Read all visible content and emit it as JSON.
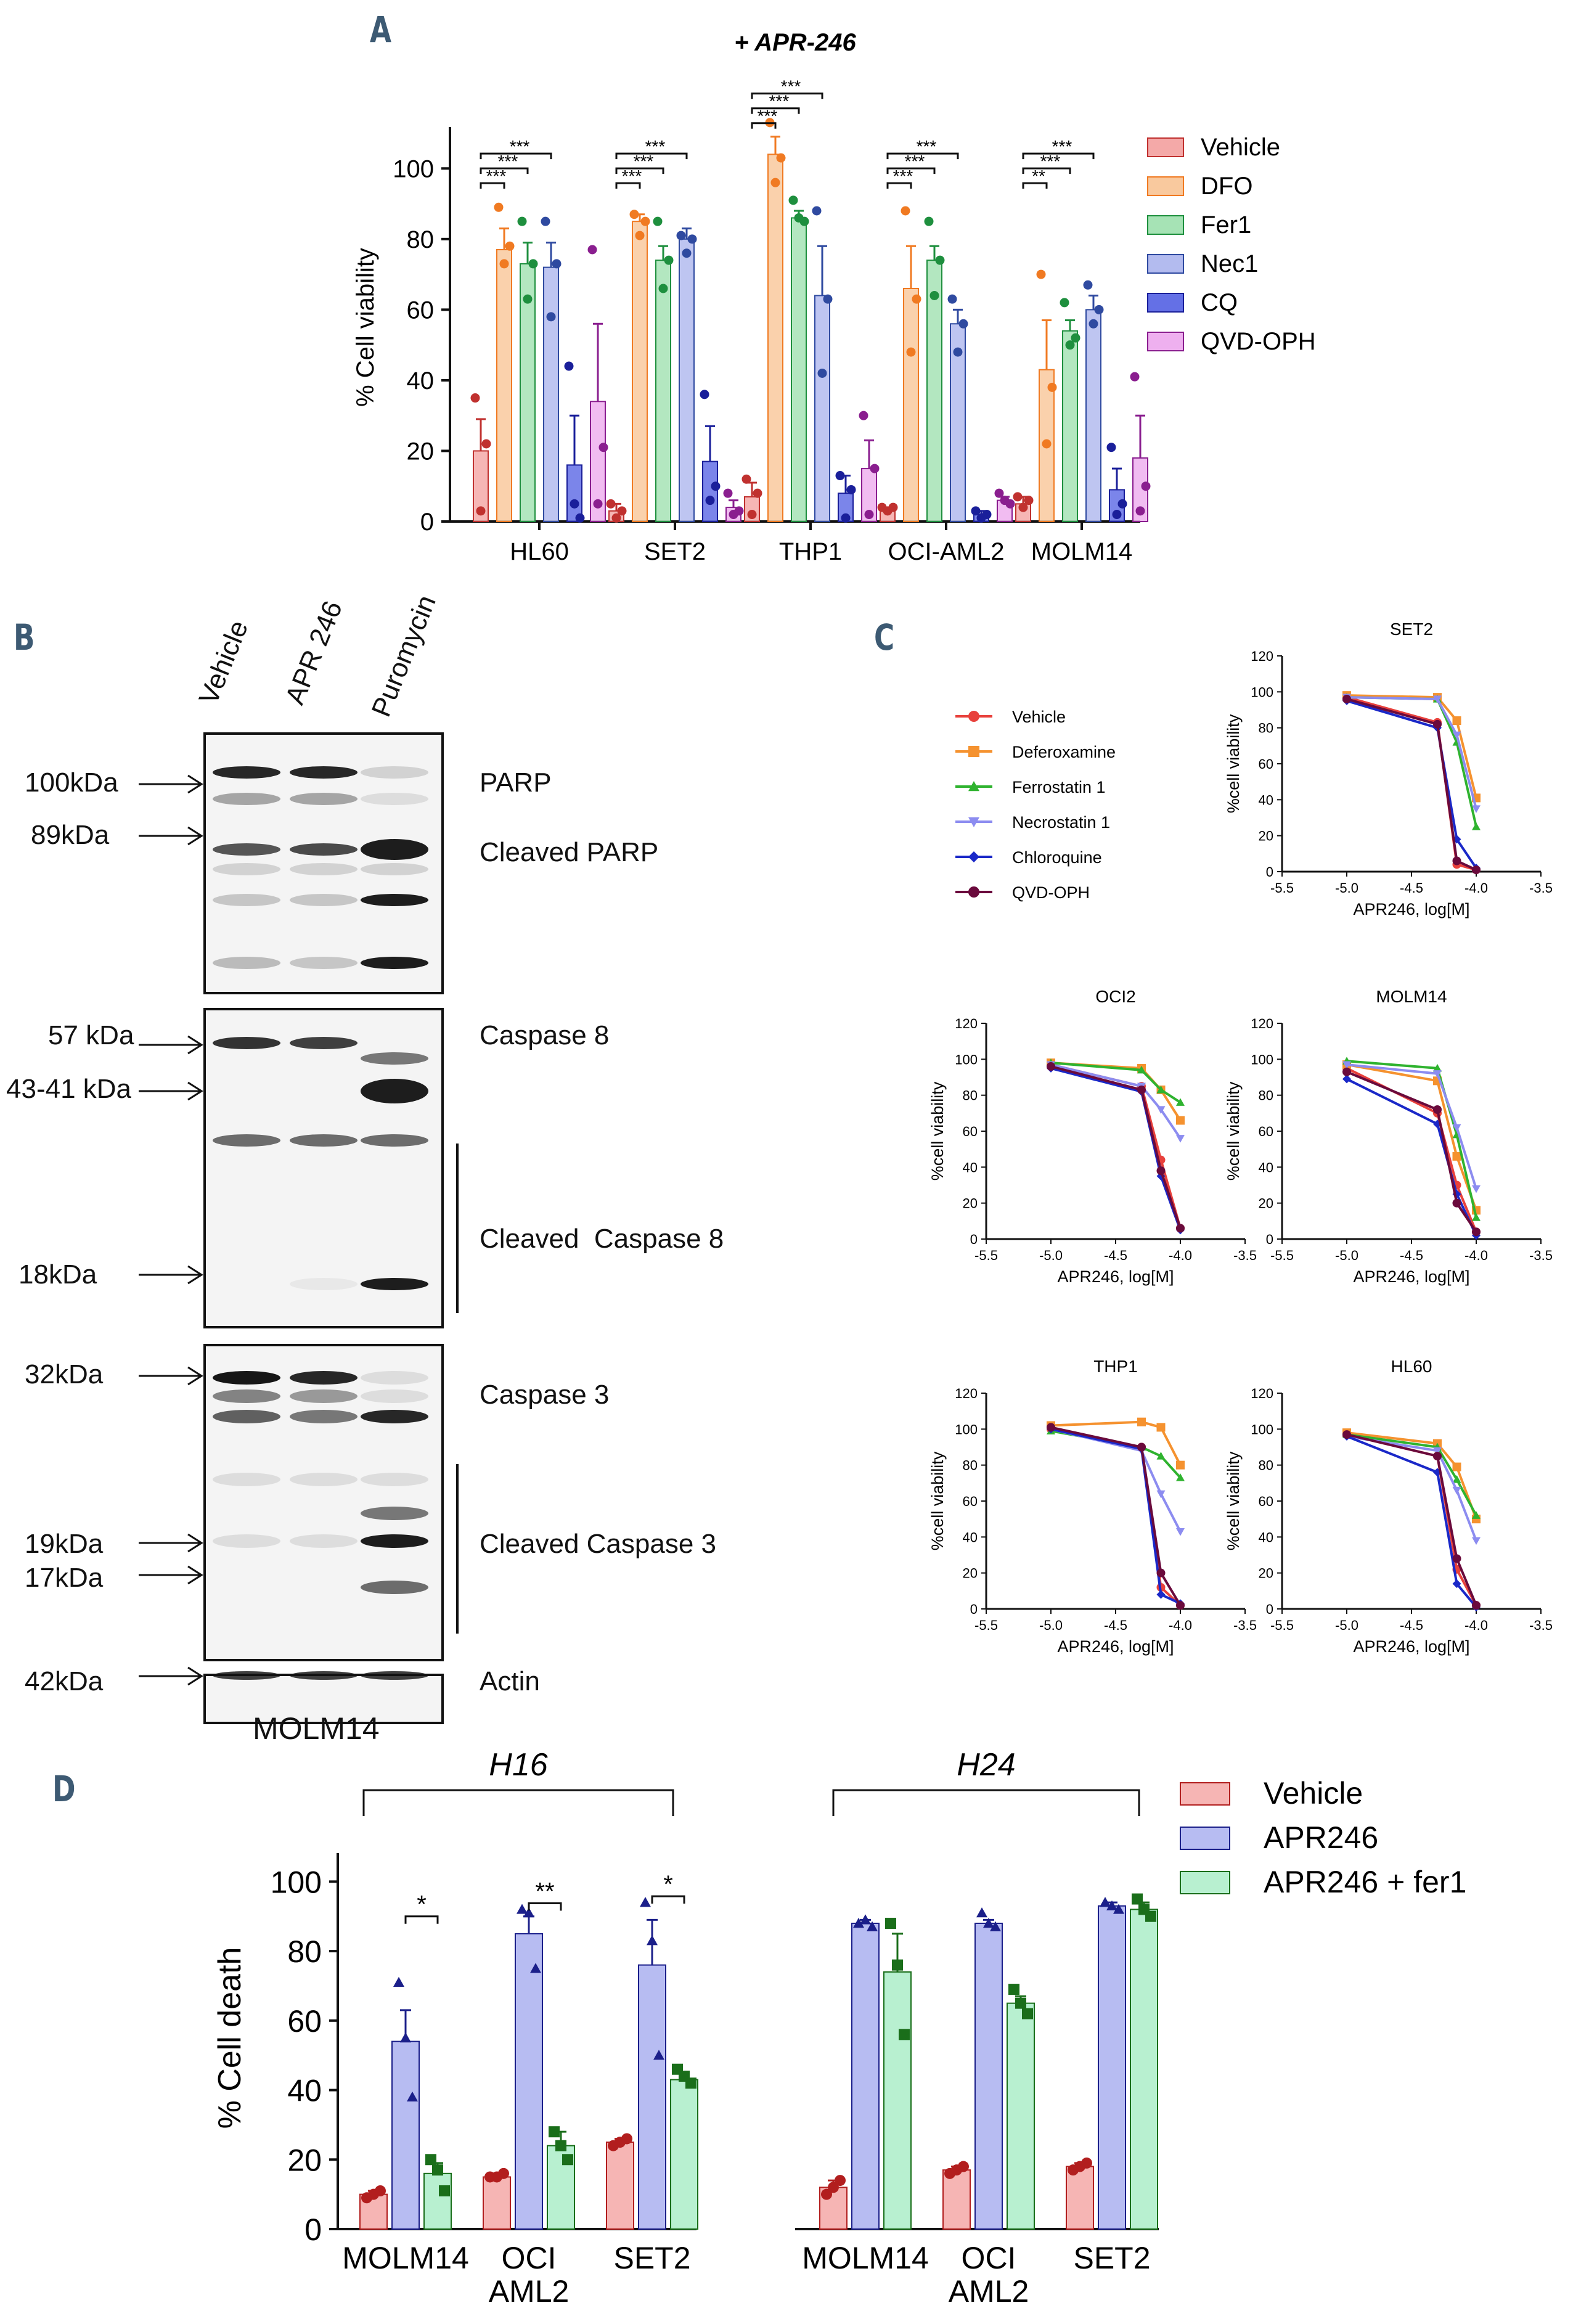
{
  "panel_letters": {
    "A": "A",
    "B": "B",
    "C": "C",
    "D": "D"
  },
  "panelA": {
    "title": "+ APR-246",
    "colors": [
      "#f4a9a8",
      "#f9c99e",
      "#a6e3b5",
      "#b3bbef",
      "#6470e6",
      "#eeb0ef"
    ],
    "dot_colors": [
      "#c0312f",
      "#f07a22",
      "#1e8f3e",
      "#2f4aa0",
      "#1a1f9a",
      "#8a1e8f"
    ]
  },
  "panelB": {
    "lanes": [
      "Vehicle",
      "APR 246",
      "Puromycin"
    ],
    "markers": [
      {
        "kda": "100kDa",
        "label": "PARP"
      },
      {
        "kda": "89kDa",
        "label": "Cleaved PARP"
      },
      {
        "kda": "57 kDa",
        "label": "Caspase 8"
      },
      {
        "kda": "43-41 kDa",
        "label": ""
      },
      {
        "kda": "18kDa",
        "label": "Cleaved  Caspase 8"
      },
      {
        "kda": "32kDa",
        "label": "Caspase 3"
      },
      {
        "kda": "19kDa",
        "label": "Cleaved Caspase 3"
      },
      {
        "kda": "17kDa",
        "label": ""
      },
      {
        "kda": "42kDa",
        "label": "Actin"
      }
    ],
    "cell_line": "MOLM14"
  },
  "panelC": {
    "legend": [
      "Vehicle",
      "Deferoxamine",
      "Ferrostatin 1",
      "Necrostatin 1",
      "Chloroquine",
      "QVD-OPH"
    ],
    "colors": [
      "#e8413c",
      "#f5922f",
      "#2fb32f",
      "#8c8cf0",
      "#1a28c8",
      "#6a0a3c"
    ]
  },
  "panelD": {
    "colors": [
      "#f6b5b4",
      "#b7bcf2",
      "#b8f0d0"
    ],
    "marker_colors": [
      "#b21e1e",
      "#1b1f8a",
      "#1a6e1a"
    ]
  },
  "chart_data": [
    {
      "id": "A",
      "type": "bar",
      "title": "+ APR-246",
      "xlabel": "",
      "ylabel": "%  Cell viability",
      "ylim": [
        0,
        110
      ],
      "yticks": [
        0,
        20,
        40,
        60,
        80,
        100
      ],
      "categories": [
        "HL60",
        "SET2",
        "THP1",
        "OCI-AML2",
        "MOLM14"
      ],
      "series": [
        {
          "name": "Vehicle",
          "values": [
            20,
            3,
            7,
            3,
            5
          ],
          "sem": [
            9,
            2,
            4,
            1,
            2
          ],
          "points": [
            [
              35,
              3,
              22
            ],
            [
              5,
              1,
              3
            ],
            [
              12,
              2,
              8
            ],
            [
              4,
              3,
              4
            ],
            [
              7,
              4,
              6
            ]
          ]
        },
        {
          "name": "DFO",
          "values": [
            77,
            85,
            104,
            66,
            43
          ],
          "sem": [
            6,
            2,
            5,
            12,
            14
          ],
          "points": [
            [
              89,
              73,
              78
            ],
            [
              87,
              81,
              85
            ],
            [
              113,
              96,
              103
            ],
            [
              88,
              48,
              63
            ],
            [
              70,
              22,
              38
            ]
          ]
        },
        {
          "name": "Fer1",
          "values": [
            73,
            74,
            86,
            74,
            54
          ],
          "sem": [
            6,
            4,
            2,
            4,
            3
          ],
          "points": [
            [
              85,
              63,
              73
            ],
            [
              85,
              66,
              74
            ],
            [
              91,
              86,
              85
            ],
            [
              85,
              64,
              74
            ],
            [
              62,
              50,
              52
            ]
          ]
        },
        {
          "name": "Nec1",
          "values": [
            72,
            80,
            64,
            56,
            60
          ],
          "sem": [
            7,
            3,
            14,
            4,
            4
          ],
          "points": [
            [
              85,
              58,
              73
            ],
            [
              81,
              76,
              80
            ],
            [
              88,
              42,
              63
            ],
            [
              63,
              48,
              56
            ],
            [
              67,
              56,
              60
            ]
          ]
        },
        {
          "name": "CQ",
          "values": [
            16,
            17,
            8,
            2,
            9
          ],
          "sem": [
            14,
            10,
            5,
            1,
            6
          ],
          "points": [
            [
              44,
              5,
              1
            ],
            [
              36,
              6,
              10
            ],
            [
              13,
              1,
              9
            ],
            [
              3,
              1,
              2
            ],
            [
              21,
              2,
              5
            ]
          ]
        },
        {
          "name": "QVD-OPH",
          "values": [
            34,
            4,
            15,
            6,
            18
          ],
          "sem": [
            22,
            2,
            8,
            1,
            12
          ],
          "points": [
            [
              77,
              5,
              21
            ],
            [
              8,
              2,
              3
            ],
            [
              30,
              2,
              15
            ],
            [
              8,
              6,
              5
            ],
            [
              41,
              3,
              10
            ]
          ]
        }
      ],
      "significance": [
        {
          "category": "HL60",
          "labels": [
            "***",
            "***",
            "***"
          ]
        },
        {
          "category": "SET2",
          "labels": [
            "***",
            "***",
            "***"
          ]
        },
        {
          "category": "THP1",
          "labels": [
            "***",
            "***",
            "***"
          ]
        },
        {
          "category": "OCI-AML2",
          "labels": [
            "***",
            "***",
            "***"
          ]
        },
        {
          "category": "MOLM14",
          "labels": [
            "**",
            "***",
            "***"
          ]
        }
      ],
      "legend_position": "right"
    },
    {
      "id": "C",
      "type": "line",
      "xlabel": "APR246, log[M]",
      "ylabel": "%cell viability",
      "xlim": [
        -5.5,
        -3.5
      ],
      "ylim": [
        0,
        120
      ],
      "xticks": [
        -5.5,
        -5.0,
        -4.5,
        -4.0,
        -3.5
      ],
      "yticks": [
        0,
        20,
        40,
        60,
        80,
        100,
        120
      ],
      "x": [
        -5.0,
        -4.3,
        -4.15,
        -4.0
      ],
      "legend_position": "top-left",
      "subplots": [
        {
          "title": "SET2",
          "series": [
            {
              "name": "Vehicle",
              "values": [
                97,
                83,
                4,
                1
              ]
            },
            {
              "name": "Deferoxamine",
              "values": [
                98,
                97,
                84,
                41
              ]
            },
            {
              "name": "Ferrostatin 1",
              "values": [
                97,
                96,
                72,
                25
              ]
            },
            {
              "name": "Necrostatin 1",
              "values": [
                97,
                96,
                76,
                35
              ]
            },
            {
              "name": "Chloroquine",
              "values": [
                95,
                80,
                18,
                2
              ]
            },
            {
              "name": "QVD-OPH",
              "values": [
                96,
                82,
                6,
                1
              ]
            }
          ]
        },
        {
          "title": "OCI2",
          "series": [
            {
              "name": "Vehicle",
              "values": [
                97,
                85,
                44,
                6
              ]
            },
            {
              "name": "Deferoxamine",
              "values": [
                98,
                95,
                83,
                66
              ]
            },
            {
              "name": "Ferrostatin 1",
              "values": [
                98,
                94,
                83,
                76
              ]
            },
            {
              "name": "Necrostatin 1",
              "values": [
                97,
                85,
                72,
                56
              ]
            },
            {
              "name": "Chloroquine",
              "values": [
                95,
                82,
                35,
                5
              ]
            },
            {
              "name": "QVD-OPH",
              "values": [
                96,
                83,
                38,
                6
              ]
            }
          ]
        },
        {
          "title": "MOLM14",
          "series": [
            {
              "name": "Vehicle",
              "values": [
                95,
                70,
                30,
                4
              ]
            },
            {
              "name": "Deferoxamine",
              "values": [
                97,
                88,
                46,
                16
              ]
            },
            {
              "name": "Ferrostatin 1",
              "values": [
                99,
                95,
                58,
                12
              ]
            },
            {
              "name": "Necrostatin 1",
              "values": [
                97,
                92,
                62,
                28
              ]
            },
            {
              "name": "Chloroquine",
              "values": [
                89,
                64,
                25,
                2
              ]
            },
            {
              "name": "QVD-OPH",
              "values": [
                93,
                72,
                20,
                4
              ]
            }
          ]
        },
        {
          "title": "THP1",
          "series": [
            {
              "name": "Vehicle",
              "values": [
                100,
                90,
                12,
                2
              ]
            },
            {
              "name": "Deferoxamine",
              "values": [
                102,
                104,
                101,
                80
              ]
            },
            {
              "name": "Ferrostatin 1",
              "values": [
                99,
                90,
                85,
                73
              ]
            },
            {
              "name": "Necrostatin 1",
              "values": [
                100,
                88,
                64,
                43
              ]
            },
            {
              "name": "Chloroquine",
              "values": [
                100,
                89,
                8,
                3
              ]
            },
            {
              "name": "QVD-OPH",
              "values": [
                101,
                90,
                20,
                2
              ]
            }
          ]
        },
        {
          "title": "HL60",
          "series": [
            {
              "name": "Vehicle",
              "values": [
                97,
                85,
                22,
                2
              ]
            },
            {
              "name": "Deferoxamine",
              "values": [
                98,
                92,
                79,
                50
              ]
            },
            {
              "name": "Ferrostatin 1",
              "values": [
                97,
                90,
                72,
                52
              ]
            },
            {
              "name": "Necrostatin 1",
              "values": [
                96,
                88,
                66,
                38
              ]
            },
            {
              "name": "Chloroquine",
              "values": [
                96,
                76,
                14,
                1
              ]
            },
            {
              "name": "QVD-OPH",
              "values": [
                97,
                85,
                28,
                2
              ]
            }
          ]
        }
      ]
    },
    {
      "id": "D",
      "type": "bar",
      "ylabel": "% Cell death",
      "ylim": [
        0,
        110
      ],
      "yticks": [
        0,
        20,
        40,
        60,
        80,
        100
      ],
      "groups": [
        {
          "label": "H16",
          "categories": [
            "MOLM14",
            "OCI\nAML2",
            "SET2"
          ],
          "significance": [
            "*",
            "**",
            "*"
          ]
        },
        {
          "label": "H24",
          "categories": [
            "MOLM14",
            "OCI\nAML2",
            "SET2"
          ],
          "significance": [
            "",
            "",
            ""
          ]
        }
      ],
      "series": [
        {
          "name": "Vehicle",
          "values": [
            10,
            15,
            25,
            12,
            17,
            18
          ],
          "sem": [
            1,
            1,
            1,
            2,
            1,
            1
          ],
          "points": [
            [
              9,
              10,
              11
            ],
            [
              15,
              15,
              16
            ],
            [
              24,
              25,
              26
            ],
            [
              10,
              12,
              14
            ],
            [
              16,
              17,
              18
            ],
            [
              17,
              18,
              19
            ]
          ]
        },
        {
          "name": "APR246",
          "values": [
            54,
            85,
            76,
            88,
            88,
            93
          ],
          "sem": [
            9,
            5,
            13,
            1,
            1,
            1
          ],
          "points": [
            [
              71,
              55,
              38
            ],
            [
              92,
              91,
              75
            ],
            [
              94,
              83,
              50
            ],
            [
              88,
              89,
              87
            ],
            [
              91,
              88,
              87
            ],
            [
              94,
              93,
              92
            ]
          ]
        },
        {
          "name": "APR246 + fer1",
          "values": [
            16,
            24,
            43,
            74,
            65,
            92
          ],
          "sem": [
            3,
            4,
            2,
            11,
            2,
            2
          ],
          "points": [
            [
              20,
              17,
              11
            ],
            [
              28,
              24,
              20
            ],
            [
              46,
              44,
              42
            ],
            [
              88,
              76,
              56
            ],
            [
              69,
              65,
              62
            ],
            [
              95,
              92,
              90
            ]
          ]
        }
      ],
      "legend_position": "right"
    }
  ]
}
